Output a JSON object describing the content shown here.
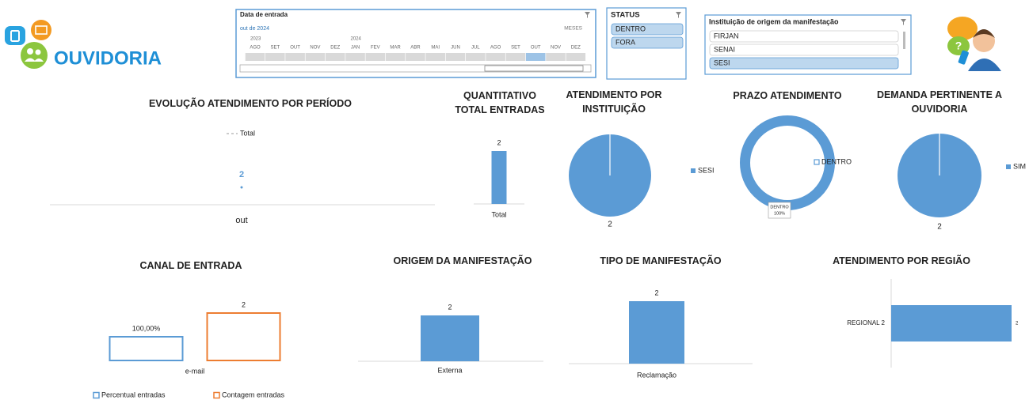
{
  "header": {
    "logo": "OUVIDORIA"
  },
  "timeline": {
    "title": "Data de entrada",
    "selection": "out de 2024",
    "level": "MESES",
    "years": [
      "2023",
      "2024"
    ],
    "months": [
      "AGO",
      "SET",
      "OUT",
      "NOV",
      "DEZ",
      "JAN",
      "FEV",
      "MAR",
      "ABR",
      "MAI",
      "JUN",
      "JUL",
      "AGO",
      "SET",
      "OUT",
      "NOV",
      "DEZ"
    ],
    "selected": 14
  },
  "status_slicer": {
    "title": "STATUS",
    "items": [
      "DENTRO",
      "FORA"
    ],
    "selected": [
      0,
      1
    ]
  },
  "institution_slicer": {
    "title": "Instituição de origem da manifestação",
    "items": [
      "FIRJAN",
      "SENAI",
      "SESI"
    ],
    "selected": [
      2
    ]
  },
  "chart_data": [
    {
      "type": "line",
      "title": "EVOLUÇÃO ATENDIMENTO POR PERÍODO",
      "categories": [
        "out"
      ],
      "series": [
        {
          "name": "Total",
          "color": "#5b9bd5",
          "values": [
            2
          ]
        }
      ]
    },
    {
      "type": "bar",
      "title": "QUANTITATIVO TOTAL ENTRADAS",
      "categories": [
        "Total"
      ],
      "values": [
        2
      ],
      "color": "#5b9bd5"
    },
    {
      "type": "pie",
      "title": "ATENDIMENTO POR INSTITUIÇÃO",
      "categories": [
        "SESI"
      ],
      "values": [
        2
      ],
      "color": "#5b9bd5"
    },
    {
      "type": "donut",
      "title": "PRAZO ATENDIMENTO",
      "categories": [
        "DENTRO"
      ],
      "values": [
        100
      ],
      "value_labels": [
        "100%"
      ],
      "color": "#5b9bd5"
    },
    {
      "type": "pie",
      "title": "DEMANDA PERTINENTE A OUVIDORIA",
      "categories": [
        "SIM"
      ],
      "values": [
        2
      ],
      "color": "#5b9bd5"
    },
    {
      "type": "bar",
      "title": "CANAL DE ENTRADA",
      "categories": [
        "e-mail"
      ],
      "style": "outline",
      "series": [
        {
          "name": "Percentual entradas",
          "color": "#5b9bd5",
          "values": [
            1
          ],
          "value_labels": [
            "100,00%"
          ]
        },
        {
          "name": "Contagem entradas",
          "color": "#ed7d31",
          "values": [
            2
          ]
        }
      ]
    },
    {
      "type": "bar",
      "title": "ORIGEM DA MANIFESTAÇÃO",
      "categories": [
        "Externa"
      ],
      "values": [
        2
      ],
      "color": "#5b9bd5"
    },
    {
      "type": "bar",
      "title": "TIPO DE MANIFESTAÇÃO",
      "categories": [
        "Reclamação"
      ],
      "values": [
        2
      ],
      "color": "#5b9bd5"
    },
    {
      "type": "barh",
      "title": "ATENDIMENTO POR REGIÃO",
      "categories": [
        "REGIONAL 2"
      ],
      "values": [
        2
      ],
      "color": "#5b9bd5"
    }
  ]
}
